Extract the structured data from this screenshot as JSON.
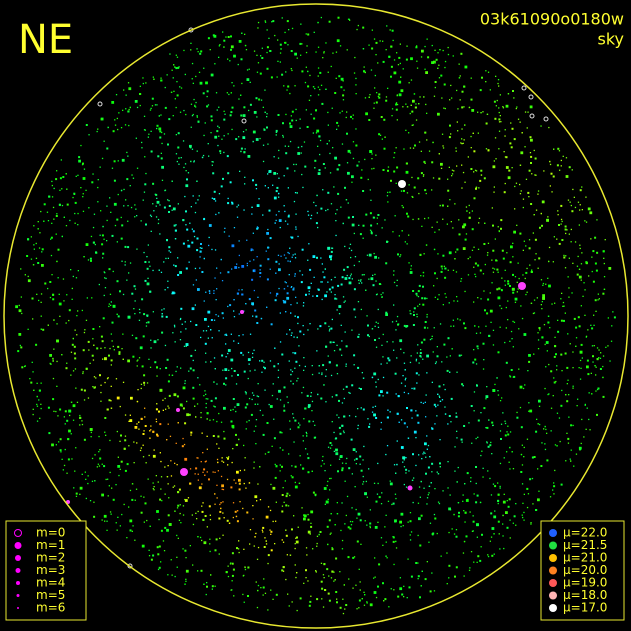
{
  "header": {
    "direction": "NE",
    "frame_id": "03k61090o0180w",
    "view": "sky"
  },
  "magnitude_legend": {
    "entries": [
      "m=0",
      "m=1",
      "m=2",
      "m=3",
      "m=4",
      "m=5",
      "m=6"
    ],
    "color": "#ff00ff"
  },
  "brightness_legend": {
    "entries": [
      {
        "label": "μ=22.0",
        "color": "#2060ff"
      },
      {
        "label": "μ=21.5",
        "color": "#20e040"
      },
      {
        "label": "μ=21.0",
        "color": "#ffc000"
      },
      {
        "label": "μ=20.0",
        "color": "#ff8020"
      },
      {
        "label": "μ=19.0",
        "color": "#ff5858"
      },
      {
        "label": "μ=18.0",
        "color": "#ffb4b4"
      },
      {
        "label": "μ=17.0",
        "color": "#ffffff"
      }
    ]
  }
}
